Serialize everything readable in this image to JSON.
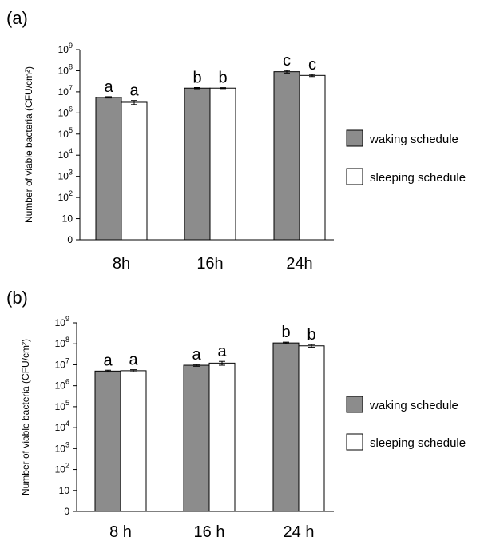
{
  "colors": {
    "waking_fill": "#8c8c8c",
    "sleeping_fill": "#ffffff",
    "stroke": "#000000",
    "errorbar": "#000000"
  },
  "chart_data": [
    {
      "panel_label": "(a)",
      "type": "bar",
      "scale": "log",
      "ylabel": "Number of viable bacteria (CFU/cm²)",
      "ytick_labels": [
        {
          "base": "0",
          "exp": ""
        },
        {
          "base": "10",
          "exp": ""
        },
        {
          "base": "10",
          "exp": "2"
        },
        {
          "base": "10",
          "exp": "3"
        },
        {
          "base": "10",
          "exp": "4"
        },
        {
          "base": "10",
          "exp": "5"
        },
        {
          "base": "10",
          "exp": "6"
        },
        {
          "base": "10",
          "exp": "7"
        },
        {
          "base": "10",
          "exp": "8"
        },
        {
          "base": "10",
          "exp": "9"
        }
      ],
      "ylim": [
        1,
        1000000000
      ],
      "categories": [
        "8h",
        "16h",
        "24h"
      ],
      "series": [
        {
          "name": "waking schedule",
          "values": [
            5500000,
            15000000,
            90000000
          ],
          "errors": [
            400000,
            1000000,
            12000000
          ],
          "letters": [
            "a",
            "b",
            "c"
          ]
        },
        {
          "name": "sleeping schedule",
          "values": [
            3200000,
            15000000,
            60000000
          ],
          "errors": [
            700000,
            800000,
            7000000
          ],
          "letters": [
            "a",
            "b",
            "c"
          ]
        }
      ],
      "legend_position": "right"
    },
    {
      "panel_label": "(b)",
      "type": "bar",
      "scale": "log",
      "ylabel": "Number of viable bacteria (CFU/cm²)",
      "ytick_labels": [
        {
          "base": "0",
          "exp": ""
        },
        {
          "base": "10",
          "exp": ""
        },
        {
          "base": "10",
          "exp": "2"
        },
        {
          "base": "10",
          "exp": "3"
        },
        {
          "base": "10",
          "exp": "4"
        },
        {
          "base": "10",
          "exp": "5"
        },
        {
          "base": "10",
          "exp": "6"
        },
        {
          "base": "10",
          "exp": "7"
        },
        {
          "base": "10",
          "exp": "8"
        },
        {
          "base": "10",
          "exp": "9"
        }
      ],
      "ylim": [
        1,
        1000000000
      ],
      "categories": [
        "8 h",
        "16 h",
        "24 h"
      ],
      "series": [
        {
          "name": "waking schedule",
          "values": [
            5000000,
            9500000,
            110000000
          ],
          "errors": [
            500000,
            1000000,
            10000000
          ],
          "letters": [
            "a",
            "a",
            "b"
          ]
        },
        {
          "name": "sleeping schedule",
          "values": [
            5200000,
            12000000,
            80000000
          ],
          "errors": [
            600000,
            2500000,
            12000000
          ],
          "letters": [
            "a",
            "a",
            "b"
          ]
        }
      ],
      "legend_position": "right"
    }
  ]
}
